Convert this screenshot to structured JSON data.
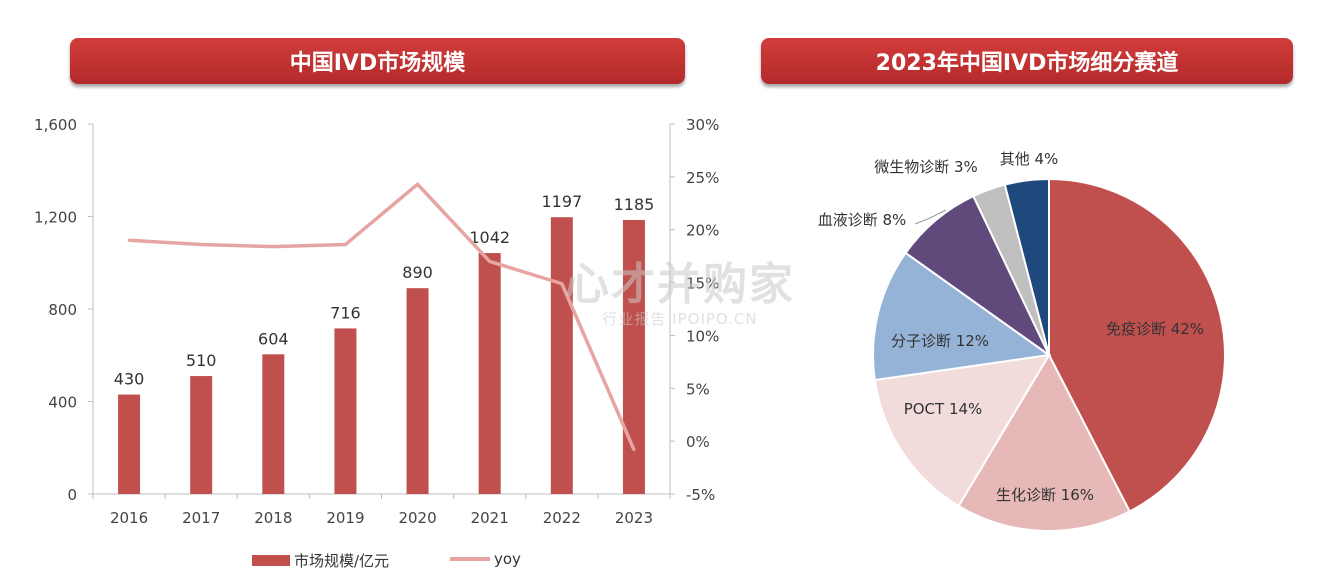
{
  "left_title": "中国IVD市场规模",
  "right_title": "2023年中国IVD市场细分赛道",
  "legend": {
    "bar_label": "市场规模/亿元",
    "line_label": "yoy",
    "bar_color": "#c0504d",
    "line_color": "#e6a5a3"
  },
  "watermark": {
    "main": "心才并购家",
    "sub": "行业报告 IPOIPO.CN"
  },
  "chart_data": [
    {
      "type": "bar",
      "categories": [
        "2016",
        "2017",
        "2018",
        "2019",
        "2020",
        "2021",
        "2022",
        "2023"
      ],
      "series": [
        {
          "name": "市场规模/亿元",
          "type": "bar",
          "axis": "left",
          "values": [
            430,
            510,
            604,
            716,
            890,
            1042,
            1197,
            1185
          ]
        },
        {
          "name": "yoy",
          "type": "line",
          "axis": "right",
          "values": [
            19,
            18.6,
            18.4,
            18.6,
            24.3,
            17,
            14.9,
            -0.8
          ]
        }
      ],
      "y_left": {
        "min": 0,
        "max": 1600,
        "ticks": [
          0,
          400,
          800,
          1200,
          1600
        ],
        "tick_labels": [
          "0",
          "400",
          "800",
          "1,200",
          "1,600"
        ]
      },
      "y_right": {
        "min": -5,
        "max": 30,
        "ticks": [
          -5,
          0,
          5,
          10,
          15,
          20,
          25,
          30
        ],
        "tick_labels": [
          "-5%",
          "0%",
          "5%",
          "10%",
          "15%",
          "20%",
          "25%",
          "30%"
        ]
      },
      "data_labels": [
        "430",
        "510",
        "604",
        "716",
        "890",
        "1042",
        "1197",
        "1185"
      ],
      "legend_position": "bottom",
      "grid": false
    },
    {
      "type": "pie",
      "labels": [
        "免疫诊断",
        "生化诊断",
        "POCT",
        "分子诊断",
        "血液诊断",
        "微生物诊断",
        "其他"
      ],
      "values": [
        42,
        16,
        14,
        12,
        8,
        3,
        4
      ],
      "value_labels": [
        "42%",
        "16%",
        "14%",
        "12%",
        "8%",
        "3%",
        "4%"
      ],
      "colors": [
        "#c0504d",
        "#e6b8b7",
        "#f2dcdb",
        "#95b3d7",
        "#604a7b",
        "#bfbfbf",
        "#1f497d"
      ],
      "start": "12 o'clock",
      "direction": "clockwise"
    }
  ]
}
